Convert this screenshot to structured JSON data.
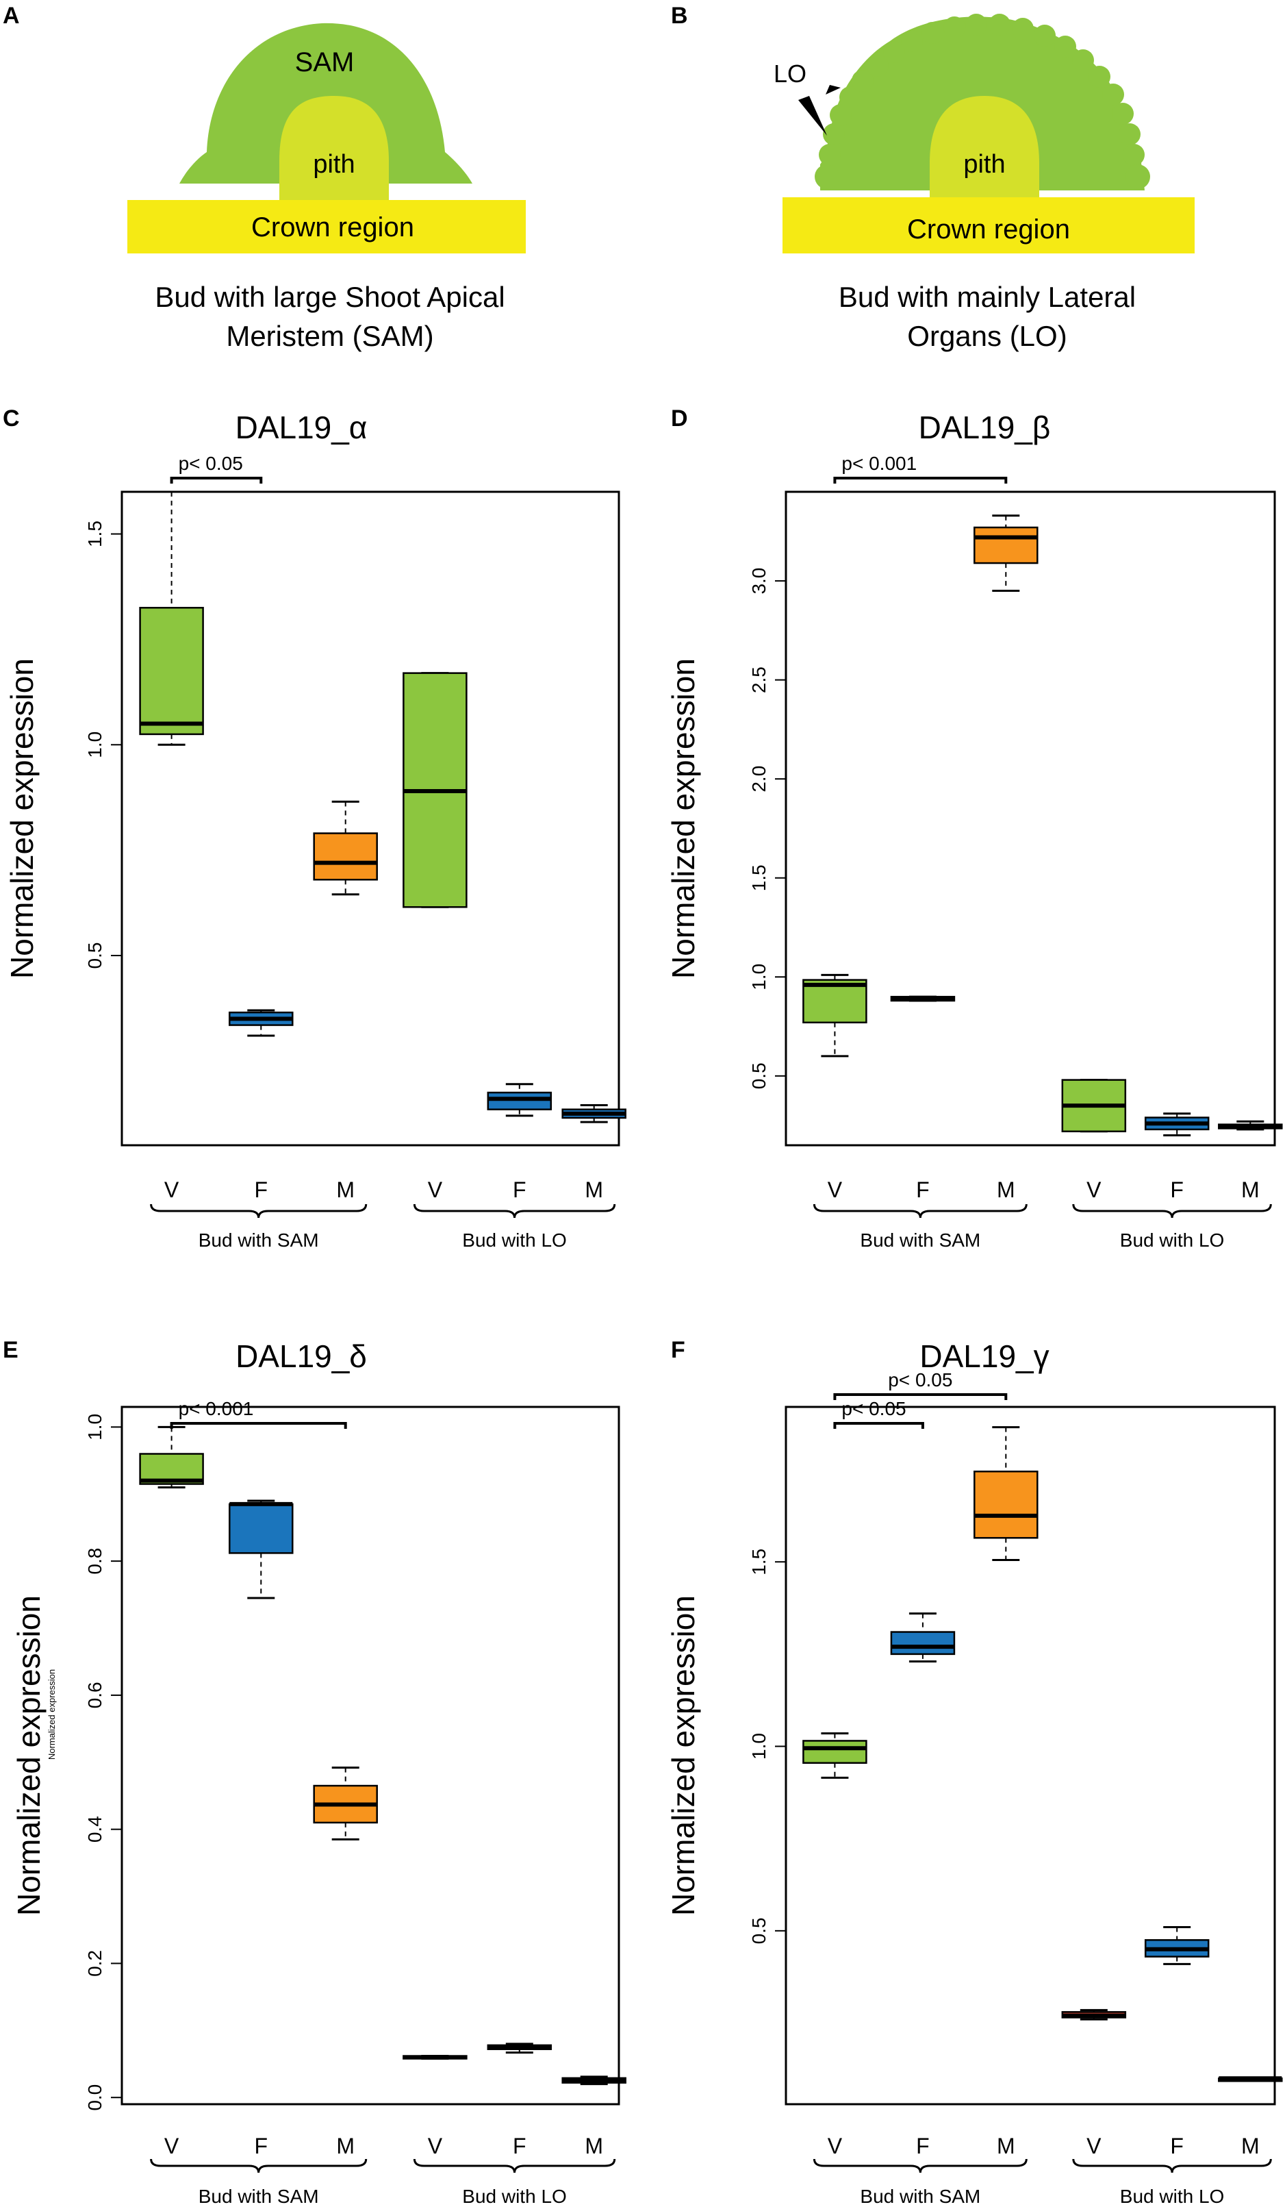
{
  "panels": {
    "A": {
      "letter": "A",
      "top_label": "SAM",
      "pith_label": "pith",
      "base_label": "Crown region",
      "caption_line1": "Bud with large Shoot Apical",
      "caption_line2": "Meristem (SAM)"
    },
    "B": {
      "letter": "B",
      "lo_label": "LO",
      "pith_label": "pith",
      "base_label": "Crown region",
      "caption_line1": "Bud with mainly Lateral",
      "caption_line2": "Organs (LO)"
    }
  },
  "colors": {
    "green": "#8cc63f",
    "green_light": "#7ac143",
    "pith": "#d4e02a",
    "crown": "#f5ea14",
    "orange": "#f7941d",
    "blue": "#1b75bc",
    "red": "#b03a2e"
  },
  "chart_data": [
    {
      "panel": "C",
      "type": "boxplot",
      "title": "DAL19_α",
      "ylabel": "Normalized expression",
      "ylim": [
        0.05,
        1.6
      ],
      "yticks": [
        0.5,
        1.0,
        1.5
      ],
      "ytick_labels": [
        "0.5",
        "1.0",
        "1.5"
      ],
      "categories": [
        "V",
        "F",
        "M",
        "V",
        "F",
        "M"
      ],
      "groups": [
        "Bud with SAM",
        "Bud with LO"
      ],
      "boxes": [
        {
          "label": "V",
          "color": "green",
          "min": 1.0,
          "q1": 1.025,
          "median": 1.05,
          "q3": 1.325,
          "max": 1.6
        },
        {
          "label": "F",
          "color": "blue",
          "min": 0.31,
          "q1": 0.335,
          "median": 0.35,
          "q3": 0.365,
          "max": 0.37
        },
        {
          "label": "M",
          "color": "orange",
          "min": 0.645,
          "q1": 0.68,
          "median": 0.72,
          "q3": 0.79,
          "max": 0.865
        },
        {
          "label": "V",
          "color": "green",
          "min": 0.615,
          "q1": 0.615,
          "median": 0.89,
          "q3": 1.17,
          "max": 1.17
        },
        {
          "label": "F",
          "color": "blue",
          "min": 0.12,
          "q1": 0.135,
          "median": 0.16,
          "q3": 0.175,
          "max": 0.195
        },
        {
          "label": "M",
          "color": "blue",
          "min": 0.105,
          "q1": 0.115,
          "median": 0.125,
          "q3": 0.135,
          "max": 0.145
        }
      ],
      "significance": [
        {
          "from": 0,
          "to": 1,
          "label": "p< 0.05"
        }
      ]
    },
    {
      "panel": "D",
      "type": "boxplot",
      "title": "DAL19_β",
      "ylabel": "Normalized expression",
      "ylim": [
        0.15,
        3.45
      ],
      "yticks": [
        0.5,
        1.0,
        1.5,
        2.0,
        2.5,
        3.0
      ],
      "ytick_labels": [
        "0.5",
        "1.0",
        "1.5",
        "2.0",
        "2.5",
        "3.0"
      ],
      "categories": [
        "V",
        "F",
        "M",
        "V",
        "F",
        "M"
      ],
      "groups": [
        "Bud with SAM",
        "Bud with LO"
      ],
      "boxes": [
        {
          "label": "V",
          "color": "green",
          "min": 0.6,
          "q1": 0.77,
          "median": 0.96,
          "q3": 0.985,
          "max": 1.01
        },
        {
          "label": "F",
          "color": "blue",
          "min": 0.88,
          "q1": 0.88,
          "median": 0.89,
          "q3": 0.9,
          "max": 0.9
        },
        {
          "label": "M",
          "color": "orange",
          "min": 2.95,
          "q1": 3.09,
          "median": 3.22,
          "q3": 3.27,
          "max": 3.33
        },
        {
          "label": "V",
          "color": "green",
          "min": 0.22,
          "q1": 0.22,
          "median": 0.35,
          "q3": 0.48,
          "max": 0.48
        },
        {
          "label": "F",
          "color": "blue",
          "min": 0.2,
          "q1": 0.23,
          "median": 0.26,
          "q3": 0.29,
          "max": 0.31
        },
        {
          "label": "M",
          "color": "blue",
          "min": 0.23,
          "q1": 0.235,
          "median": 0.245,
          "q3": 0.255,
          "max": 0.27
        }
      ],
      "significance": [
        {
          "from": 0,
          "to": 2,
          "label": "p< 0.001"
        }
      ]
    },
    {
      "panel": "E",
      "type": "boxplot",
      "title": "DAL19_δ",
      "ylabel": "Normalized expression",
      "ylabel_small": "Normalized expression",
      "ylim": [
        -0.01,
        1.03
      ],
      "yticks": [
        0.0,
        0.2,
        0.4,
        0.6,
        0.8,
        1.0
      ],
      "ytick_labels": [
        "0.0",
        "0.2",
        "0.4",
        "0.6",
        "0.8",
        "1.0"
      ],
      "categories": [
        "V",
        "F",
        "M",
        "V",
        "F",
        "M"
      ],
      "groups": [
        "Bud with SAM",
        "Bud with LO"
      ],
      "boxes": [
        {
          "label": "V",
          "color": "green",
          "min": 0.91,
          "q1": 0.915,
          "median": 0.92,
          "q3": 0.96,
          "max": 1.0
        },
        {
          "label": "F",
          "color": "blue",
          "min": 0.745,
          "q1": 0.812,
          "median": 0.885,
          "q3": 0.885,
          "max": 0.89
        },
        {
          "label": "M",
          "color": "orange",
          "min": 0.385,
          "q1": 0.41,
          "median": 0.437,
          "q3": 0.465,
          "max": 0.492
        },
        {
          "label": "V",
          "color": "blue",
          "min": 0.058,
          "q1": 0.058,
          "median": 0.06,
          "q3": 0.062,
          "max": 0.062
        },
        {
          "label": "F",
          "color": "blue",
          "min": 0.067,
          "q1": 0.072,
          "median": 0.075,
          "q3": 0.078,
          "max": 0.08
        },
        {
          "label": "M",
          "color": "blue",
          "min": 0.02,
          "q1": 0.022,
          "median": 0.025,
          "q3": 0.029,
          "max": 0.031
        }
      ],
      "significance": [
        {
          "from": 0,
          "to": 2,
          "label": "p< 0.001"
        }
      ]
    },
    {
      "panel": "F",
      "type": "boxplot",
      "title": "DAL19_γ",
      "ylabel": "Normalized expression",
      "ylim": [
        0.03,
        1.92
      ],
      "yticks": [
        0.5,
        1.0,
        1.5
      ],
      "ytick_labels": [
        "0.5",
        "1.0",
        "1.5"
      ],
      "categories": [
        "V",
        "F",
        "M",
        "V",
        "F",
        "M"
      ],
      "groups": [
        "Bud with SAM",
        "Bud with LO"
      ],
      "boxes": [
        {
          "label": "V",
          "color": "green",
          "min": 0.915,
          "q1": 0.955,
          "median": 0.995,
          "q3": 1.015,
          "max": 1.035
        },
        {
          "label": "F",
          "color": "blue",
          "min": 1.23,
          "q1": 1.25,
          "median": 1.27,
          "q3": 1.31,
          "max": 1.36
        },
        {
          "label": "M",
          "color": "orange",
          "min": 1.505,
          "q1": 1.565,
          "median": 1.625,
          "q3": 1.745,
          "max": 1.865
        },
        {
          "label": "V",
          "color": "red",
          "min": 0.26,
          "q1": 0.265,
          "median": 0.27,
          "q3": 0.28,
          "max": 0.285
        },
        {
          "label": "F",
          "color": "blue",
          "min": 0.41,
          "q1": 0.43,
          "median": 0.45,
          "q3": 0.475,
          "max": 0.51
        },
        {
          "label": "M",
          "color": "blue",
          "min": 0.1,
          "q1": 0.1,
          "median": 0.1,
          "q3": 0.1,
          "max": 0.1
        }
      ],
      "significance": [
        {
          "from": 0,
          "to": 1,
          "label": "p< 0.05"
        },
        {
          "from": 0,
          "to": 2,
          "label": "p< 0.05"
        }
      ]
    }
  ]
}
